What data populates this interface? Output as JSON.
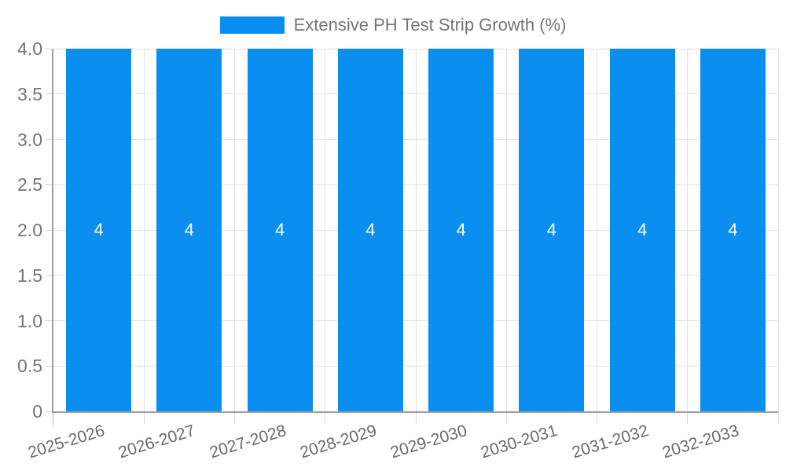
{
  "chart_data": {
    "type": "bar",
    "title": "",
    "legend": {
      "position": "top",
      "label": "Extensive PH Test Strip Growth (%)"
    },
    "categories": [
      "2025-2026",
      "2026-2027",
      "2027-2028",
      "2028-2029",
      "2029-2030",
      "2030-2031",
      "2031-2032",
      "2032-2033"
    ],
    "series": [
      {
        "name": "Extensive PH Test Strip Growth (%)",
        "values": [
          4,
          4,
          4,
          4,
          4,
          4,
          4,
          4
        ],
        "data_labels": [
          "4",
          "4",
          "4",
          "4",
          "4",
          "4",
          "4",
          "4"
        ],
        "color": "#0a8ff0"
      }
    ],
    "xlabel": "",
    "ylabel": "",
    "ylim": [
      0,
      4
    ],
    "yticks": [
      {
        "value": 0,
        "label": "0"
      },
      {
        "value": 0.5,
        "label": "0.5"
      },
      {
        "value": 1,
        "label": "1.0"
      },
      {
        "value": 1.5,
        "label": "1.5"
      },
      {
        "value": 2,
        "label": "2.0"
      },
      {
        "value": 2.5,
        "label": "2.5"
      },
      {
        "value": 3,
        "label": "3.0"
      },
      {
        "value": 3.5,
        "label": "3.5"
      },
      {
        "value": 4,
        "label": "4.0"
      }
    ],
    "grid": true
  },
  "colors": {
    "bar": "#0a8ff0",
    "bar_value_text": "#ffffff",
    "axis_text": "#757575",
    "gridline": "#e2e2e2",
    "axis_line": "#9e9e9e"
  }
}
